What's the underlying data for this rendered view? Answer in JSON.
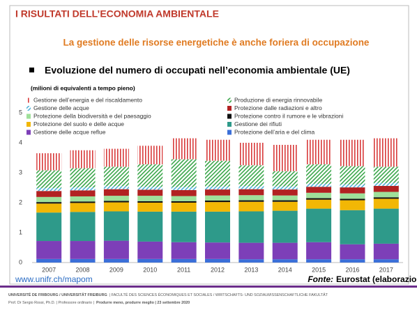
{
  "header": {
    "title": "I RISULTATI DELL’ECONOMIA AMBIENTALE"
  },
  "subtitle": "La gestione delle risorse energetiche è anche foriera di occupazione",
  "bullet": "Evoluzione del numero di occupati nell’economia ambientale (UE)",
  "chart_data": {
    "type": "stacked_bar",
    "unit_note": "(milioni di equivalenti a tempo pieno)",
    "categories": [
      "2007",
      "2008",
      "2009",
      "2010",
      "2011",
      "2012",
      "2013",
      "2014",
      "2015",
      "2016",
      "2017"
    ],
    "ylim": [
      0,
      5
    ],
    "yticks": [
      0,
      1,
      2,
      3,
      4,
      5
    ],
    "series": [
      {
        "name": "Protezione dell’aria e del clima",
        "color": "#3b6fd8",
        "hatched": false,
        "values": [
          0.12,
          0.12,
          0.12,
          0.12,
          0.12,
          0.12,
          0.11,
          0.11,
          0.11,
          0.11,
          0.11
        ]
      },
      {
        "name": "Gestione delle acque reflue",
        "color": "#7d3fb8",
        "hatched": false,
        "values": [
          0.6,
          0.6,
          0.61,
          0.58,
          0.56,
          0.55,
          0.55,
          0.55,
          0.57,
          0.5,
          0.52
        ]
      },
      {
        "name": "Gestione dei rifiuti",
        "color": "#2e9a8a",
        "hatched": false,
        "values": [
          0.95,
          0.97,
          0.98,
          1.0,
          1.02,
          1.03,
          1.05,
          1.07,
          1.12,
          1.14,
          1.17
        ]
      },
      {
        "name": "Protezione del suolo e delle acque",
        "color": "#f2b705",
        "hatched": false,
        "values": [
          0.3,
          0.3,
          0.3,
          0.3,
          0.3,
          0.32,
          0.32,
          0.3,
          0.3,
          0.33,
          0.33
        ]
      },
      {
        "name": "Protezione contro il rumore e le vibrazioni",
        "color": "#111111",
        "hatched": false,
        "values": [
          0.05,
          0.05,
          0.05,
          0.05,
          0.05,
          0.05,
          0.05,
          0.05,
          0.05,
          0.05,
          0.05
        ]
      },
      {
        "name": "Protezione della biodiversità e del paesaggio",
        "color": "#9fe09a",
        "hatched": false,
        "values": [
          0.17,
          0.17,
          0.17,
          0.18,
          0.17,
          0.17,
          0.17,
          0.16,
          0.18,
          0.18,
          0.18
        ]
      },
      {
        "name": "Protezione dalle radiazioni e altro",
        "color": "#b22222",
        "hatched": false,
        "values": [
          0.2,
          0.2,
          0.22,
          0.2,
          0.2,
          0.2,
          0.2,
          0.2,
          0.2,
          0.2,
          0.2
        ]
      },
      {
        "name": "Gestione delle acque",
        "color": "#4fb0d8",
        "hatched": true,
        "values": [
          0.1,
          0.1,
          0.1,
          0.1,
          0.1,
          0.1,
          0.1,
          0.1,
          0.1,
          0.1,
          0.1
        ]
      },
      {
        "name": "Produzione di energia rinnovabile",
        "color": "#3aa64a",
        "hatched": true,
        "values": [
          0.59,
          0.64,
          0.65,
          0.75,
          0.93,
          0.86,
          0.7,
          0.51,
          0.65,
          0.61,
          0.54
        ]
      },
      {
        "name": "Gestione dell’energia e del riscaldamento",
        "color": "#d83a3a",
        "hatched": true,
        "values": [
          0.57,
          0.6,
          0.6,
          0.62,
          0.7,
          0.7,
          0.75,
          0.88,
          0.82,
          0.88,
          0.95
        ]
      }
    ]
  },
  "footer": {
    "url": "www.unifr.ch/mapom",
    "source_label": "Fonte:",
    "source": "Eurostat (elaborazione SR)",
    "line1_bold": "UNIVERSITÉ DE FRIBOURG / UNIVERSITÄT FREIBURG",
    "line1_rest": "| FACULTÉ DES SCIENCES ÉCONOMIQUES ET SOCIALES / WIRTSCHAFTS- UND SOZIALWISSENSCHAFTLICHE FAKULTÄT",
    "line2_a": "Prof. Dr Sergio Rossi, Ph.D.  |  Professore ordinario  |",
    "line2_b": "Produrre meno, produrre meglio  |  23 settembre 2020"
  }
}
